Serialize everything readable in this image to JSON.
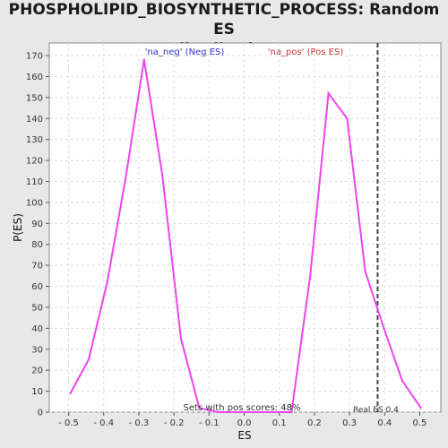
{
  "chart_data": {
    "type": "line",
    "title_line1": "PHOSPHOLIPID_BIOSYNTHETIC_PROCESS: Random ES",
    "title_line2": "distribution",
    "xlabel": "ES",
    "ylabel": "P(ES)",
    "xlim": [
      -0.555,
      0.56
    ],
    "ylim": [
      0,
      176
    ],
    "x_ticks": [
      -0.5,
      -0.4,
      -0.3,
      -0.2,
      -0.1,
      0.0,
      0.1,
      0.2,
      0.3,
      0.4,
      0.5
    ],
    "x_tick_labels": [
      "- 0.5",
      "- 0.4",
      "- 0.3",
      "- 0.2",
      "- 0.1",
      "0.0",
      "0.1",
      "0.2",
      "0.3",
      "0.4",
      "0.5"
    ],
    "y_ticks": [
      0,
      10,
      20,
      30,
      40,
      50,
      60,
      70,
      80,
      90,
      100,
      110,
      120,
      130,
      140,
      150,
      160,
      170
    ],
    "grid": true,
    "line_color": "#ee44ee",
    "series": [
      {
        "x": [
          -0.495,
          -0.443,
          -0.39,
          -0.338,
          -0.285,
          -0.233,
          -0.18,
          -0.128,
          -0.075,
          -0.023,
          0.03,
          0.083,
          0.135,
          0.188,
          0.24,
          0.293,
          0.345,
          0.398,
          0.45,
          0.503
        ],
        "y": [
          9,
          25,
          62,
          111,
          168,
          113,
          35,
          2,
          0,
          0,
          0,
          0,
          0,
          65,
          152,
          140,
          67,
          40,
          15,
          2
        ]
      }
    ],
    "legend": {
      "neg_label": "'na_neg' (Neg ES)",
      "pos_label": "'na_pos' (Pos ES)",
      "neg_color": "#3333cc",
      "pos_color": "#cc3333",
      "placement": "top"
    },
    "real_es": {
      "value": 0.38,
      "label": "Real ES 0.4"
    },
    "annotation": "Sets with pos scores: 48%"
  }
}
